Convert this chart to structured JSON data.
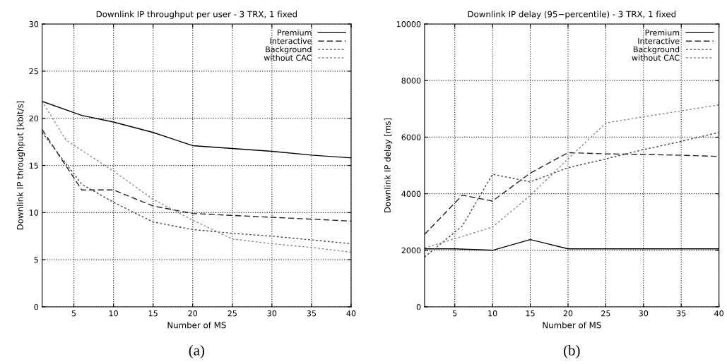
{
  "chart_data": [
    {
      "type": "line",
      "title": "Downlink IP throughput per user - 3 TRX, 1 fixed",
      "xlabel": "Number of MS",
      "ylabel": "Downlink IP throughput [kbit/s]",
      "xlim": [
        1,
        40
      ],
      "xticks": [
        5,
        10,
        15,
        20,
        25,
        30,
        35,
        40
      ],
      "ylim": [
        0,
        30
      ],
      "yticks": [
        0,
        5,
        10,
        15,
        20,
        25,
        30
      ],
      "grid": true,
      "legend": "top right",
      "annotations": [
        "(a)"
      ],
      "series": [
        {
          "name": "Premium",
          "color": "#000000",
          "line_style": "solid",
          "x": [
            1,
            6,
            10,
            15,
            20,
            25,
            30,
            35,
            40
          ],
          "values": [
            21.8,
            20.3,
            19.6,
            18.5,
            17.1,
            16.8,
            16.5,
            16.1,
            15.8
          ]
        },
        {
          "name": "Interactive",
          "color": "#222222",
          "line_style": "dashed",
          "x": [
            1,
            6,
            10,
            15,
            20,
            25,
            30,
            35,
            40
          ],
          "values": [
            18.8,
            12.4,
            12.4,
            10.7,
            9.9,
            9.7,
            9.5,
            9.3,
            9.1
          ]
        },
        {
          "name": "Background",
          "color": "#444444",
          "line_style": "dotted",
          "x": [
            1,
            6,
            10,
            15,
            20,
            25,
            30,
            35,
            40
          ],
          "values": [
            18.5,
            13.0,
            11.1,
            9.0,
            8.2,
            7.8,
            7.5,
            7.1,
            6.7
          ]
        },
        {
          "name": "without CAC",
          "color": "#888888",
          "line_style": "dotted",
          "x": [
            1,
            4,
            10,
            15,
            20,
            25,
            30,
            35,
            40
          ],
          "values": [
            21.8,
            17.7,
            14.4,
            11.4,
            9.2,
            7.2,
            6.7,
            6.3,
            5.8
          ]
        }
      ]
    },
    {
      "type": "line",
      "title": "Downlink IP delay (95−percentile) - 3 TRX, 1 fixed",
      "xlabel": "Number of MS",
      "ylabel": "Downlink IP delay [ms]",
      "xlim": [
        1,
        40
      ],
      "xticks": [
        5,
        10,
        15,
        20,
        25,
        30,
        35,
        40
      ],
      "ylim": [
        0,
        10000
      ],
      "yticks": [
        0,
        2000,
        4000,
        6000,
        8000,
        10000
      ],
      "grid": true,
      "legend": "top right",
      "annotations": [
        "(b)"
      ],
      "series": [
        {
          "name": "Premium",
          "color": "#000000",
          "line_style": "solid",
          "x": [
            1,
            5,
            10,
            15,
            20,
            25,
            30,
            35,
            40
          ],
          "values": [
            2050,
            2050,
            2000,
            2380,
            2050,
            2050,
            2050,
            2050,
            2050
          ]
        },
        {
          "name": "Interactive",
          "color": "#222222",
          "line_style": "dashed",
          "x": [
            1,
            6,
            10,
            15,
            20,
            25,
            30,
            35,
            40
          ],
          "values": [
            2560,
            3950,
            3740,
            4730,
            5450,
            5410,
            5390,
            5360,
            5320
          ]
        },
        {
          "name": "Background",
          "color": "#444444",
          "line_style": "dotted",
          "x": [
            1,
            6,
            10,
            15,
            20,
            25,
            30,
            35,
            40
          ],
          "values": [
            1760,
            2860,
            4690,
            4420,
            4920,
            5230,
            5560,
            5850,
            6170
          ]
        },
        {
          "name": "without CAC",
          "color": "#888888",
          "line_style": "dotted",
          "x": [
            1,
            5,
            10,
            15,
            20,
            25,
            30,
            35,
            40
          ],
          "values": [
            2080,
            2410,
            2820,
            3940,
            5230,
            6500,
            6720,
            6930,
            7140
          ]
        }
      ]
    }
  ]
}
